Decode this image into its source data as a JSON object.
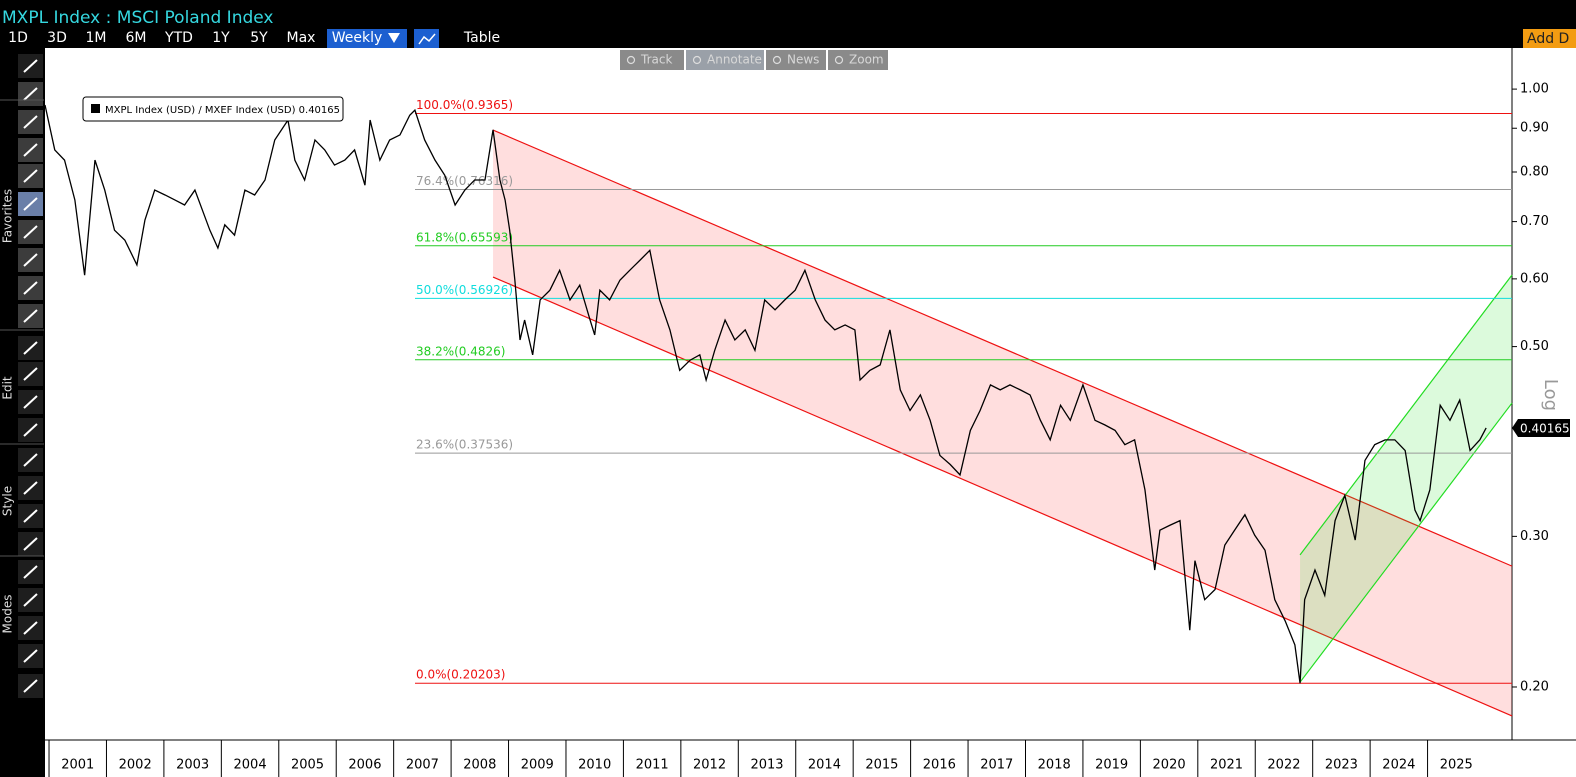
{
  "header": {
    "title": "MXPL Index : MSCI Poland Index",
    "periods": [
      "1D",
      "3D",
      "1M",
      "6M",
      "YTD",
      "1Y",
      "5Y",
      "Max"
    ],
    "frequency": "Weekly",
    "table": "Table",
    "add": "Add D"
  },
  "toolbar": {
    "sections": [
      "Favorites",
      "Edit",
      "Style",
      "Modes"
    ]
  },
  "chart_tools": [
    "Track",
    "Annotate",
    "News",
    "Zoom"
  ],
  "chart_data": {
    "type": "line",
    "y_scale": "log",
    "y_axis_label": "Log",
    "x": [
      2000.93,
      2001.1,
      2001.27,
      2001.45,
      2001.62,
      2001.8,
      2001.97,
      2002.14,
      2002.32,
      2002.53,
      2002.67,
      2002.84,
      2003.02,
      2003.19,
      2003.36,
      2003.54,
      2003.8,
      2003.94,
      2004.06,
      2004.23,
      2004.41,
      2004.58,
      2004.76,
      2004.93,
      2005.16,
      2005.28,
      2005.45,
      2005.63,
      2005.8,
      2005.97,
      2006.15,
      2006.32,
      2006.5,
      2006.59,
      2006.76,
      2006.93,
      2007.11,
      2007.28,
      2007.37,
      2007.54,
      2007.72,
      2007.89,
      2008.07,
      2008.24,
      2008.41,
      2008.59,
      2008.73,
      2008.85,
      2008.94,
      2009.02,
      2009.11,
      2009.2,
      2009.28,
      2009.42,
      2009.55,
      2009.72,
      2009.89,
      2010.07,
      2010.24,
      2010.42,
      2010.5,
      2010.59,
      2010.76,
      2010.94,
      2011.11,
      2011.29,
      2011.46,
      2011.63,
      2011.81,
      2011.98,
      2012.16,
      2012.33,
      2012.44,
      2012.59,
      2012.77,
      2012.94,
      2013.12,
      2013.29,
      2013.46,
      2013.64,
      2013.81,
      2013.99,
      2014.16,
      2014.34,
      2014.51,
      2014.68,
      2014.86,
      2015.03,
      2015.12,
      2015.29,
      2015.47,
      2015.64,
      2015.82,
      2015.99,
      2016.17,
      2016.34,
      2016.51,
      2016.69,
      2016.86,
      2017.04,
      2017.21,
      2017.39,
      2017.56,
      2017.73,
      2017.91,
      2018.08,
      2018.26,
      2018.43,
      2018.61,
      2018.78,
      2019.0,
      2019.21,
      2019.38,
      2019.56,
      2019.73,
      2019.9,
      2020.08,
      2020.25,
      2020.34,
      2020.51,
      2020.69,
      2020.86,
      2020.95,
      2021.12,
      2021.3,
      2021.47,
      2021.64,
      2021.82,
      2021.99,
      2022.17,
      2022.34,
      2022.52,
      2022.69,
      2022.78,
      2022.86,
      2023.04,
      2023.21,
      2023.39,
      2023.56,
      2023.74,
      2023.91,
      2024.08,
      2024.26,
      2024.43,
      2024.61,
      2024.78,
      2024.87,
      2025.04,
      2025.22,
      2025.39,
      2025.56,
      2025.74,
      2025.91,
      2026.02
    ],
    "series": [
      {
        "name": "MXPL Index (USD) / MXEF Index (USD)",
        "color": "#000000",
        "values": [
          0.958,
          0.849,
          0.826,
          0.742,
          0.606,
          0.826,
          0.762,
          0.684,
          0.666,
          0.623,
          0.703,
          0.762,
          0.752,
          0.742,
          0.732,
          0.762,
          0.684,
          0.652,
          0.694,
          0.675,
          0.762,
          0.752,
          0.783,
          0.872,
          0.92,
          0.826,
          0.783,
          0.872,
          0.849,
          0.815,
          0.826,
          0.849,
          0.772,
          0.92,
          0.826,
          0.872,
          0.884,
          0.932,
          0.945,
          0.872,
          0.826,
          0.793,
          0.732,
          0.762,
          0.783,
          0.783,
          0.896,
          0.783,
          0.742,
          0.684,
          0.598,
          0.509,
          0.537,
          0.489,
          0.567,
          0.582,
          0.614,
          0.567,
          0.59,
          0.537,
          0.516,
          0.582,
          0.567,
          0.598,
          0.614,
          0.631,
          0.648,
          0.567,
          0.523,
          0.469,
          0.482,
          0.489,
          0.457,
          0.495,
          0.537,
          0.509,
          0.523,
          0.495,
          0.567,
          0.552,
          0.567,
          0.582,
          0.614,
          0.567,
          0.537,
          0.523,
          0.53,
          0.523,
          0.457,
          0.469,
          0.476,
          0.523,
          0.445,
          0.421,
          0.439,
          0.41,
          0.373,
          0.364,
          0.354,
          0.399,
          0.421,
          0.451,
          0.445,
          0.451,
          0.445,
          0.439,
          0.41,
          0.389,
          0.427,
          0.41,
          0.451,
          0.41,
          0.405,
          0.399,
          0.384,
          0.389,
          0.34,
          0.274,
          0.305,
          0.309,
          0.313,
          0.233,
          0.281,
          0.253,
          0.26,
          0.293,
          0.305,
          0.318,
          0.301,
          0.289,
          0.253,
          0.239,
          0.224,
          0.202,
          0.253,
          0.274,
          0.256,
          0.313,
          0.335,
          0.297,
          0.368,
          0.384,
          0.389,
          0.389,
          0.378,
          0.322,
          0.313,
          0.34,
          0.427,
          0.41,
          0.433,
          0.378,
          0.389,
          0.40165
        ]
      }
    ],
    "xlim": [
      2000.93,
      2026.47
    ],
    "xticks": [
      2001,
      2002,
      2003,
      2004,
      2005,
      2006,
      2007,
      2008,
      2009,
      2010,
      2011,
      2012,
      2013,
      2014,
      2015,
      2016,
      2017,
      2018,
      2019,
      2020,
      2021,
      2022,
      2023,
      2024,
      2025
    ],
    "ylim": [
      0.1734,
      1.117
    ],
    "yticks": [
      {
        "value": 1,
        "label": "1.00"
      },
      {
        "value": 0.9,
        "label": "0.90"
      },
      {
        "value": 0.8,
        "label": "0.80"
      },
      {
        "value": 0.7,
        "label": "0.70"
      },
      {
        "value": 0.6,
        "label": "0.60"
      },
      {
        "value": 0.5,
        "label": "0.50"
      },
      {
        "value": 0.3,
        "label": "0.30"
      },
      {
        "value": 0.2,
        "label": "0.20"
      }
    ],
    "fib_levels": [
      {
        "label": "100.0%(0.9365)",
        "value": 0.9365,
        "color": "#ee1111"
      },
      {
        "label": "76.4%(0.76316)",
        "value": 0.76316,
        "color": "#999999"
      },
      {
        "label": "61.8%(0.65593)",
        "value": 0.65593,
        "color": "#22cc22"
      },
      {
        "label": "50.0%(0.56926)",
        "value": 0.56926,
        "color": "#11dddd"
      },
      {
        "label": "38.2%(0.4826)",
        "value": 0.4826,
        "color": "#22cc22"
      },
      {
        "label": "23.6%(0.37536)",
        "value": 0.37536,
        "color": "#999999"
      },
      {
        "label": "0.0%(0.20203)",
        "value": 0.20203,
        "color": "#ee1111"
      }
    ],
    "channels": [
      {
        "color": "#ee1111",
        "fill": "rgba(255,60,60,0.17)",
        "upper": [
          [
            2008.73,
            0.8956
          ],
          [
            2026.47,
            0.2769
          ]
        ],
        "lower": [
          [
            2008.73,
            0.603
          ],
          [
            2026.47,
            0.185
          ]
        ]
      },
      {
        "color": "#22dd22",
        "fill": "rgba(60,230,60,0.18)",
        "upper": [
          [
            2022.78,
            0.2854
          ],
          [
            2026.47,
            0.6063
          ]
        ],
        "lower": [
          [
            2022.78,
            0.2026
          ],
          [
            2026.47,
            0.4295
          ]
        ]
      }
    ]
  }
}
